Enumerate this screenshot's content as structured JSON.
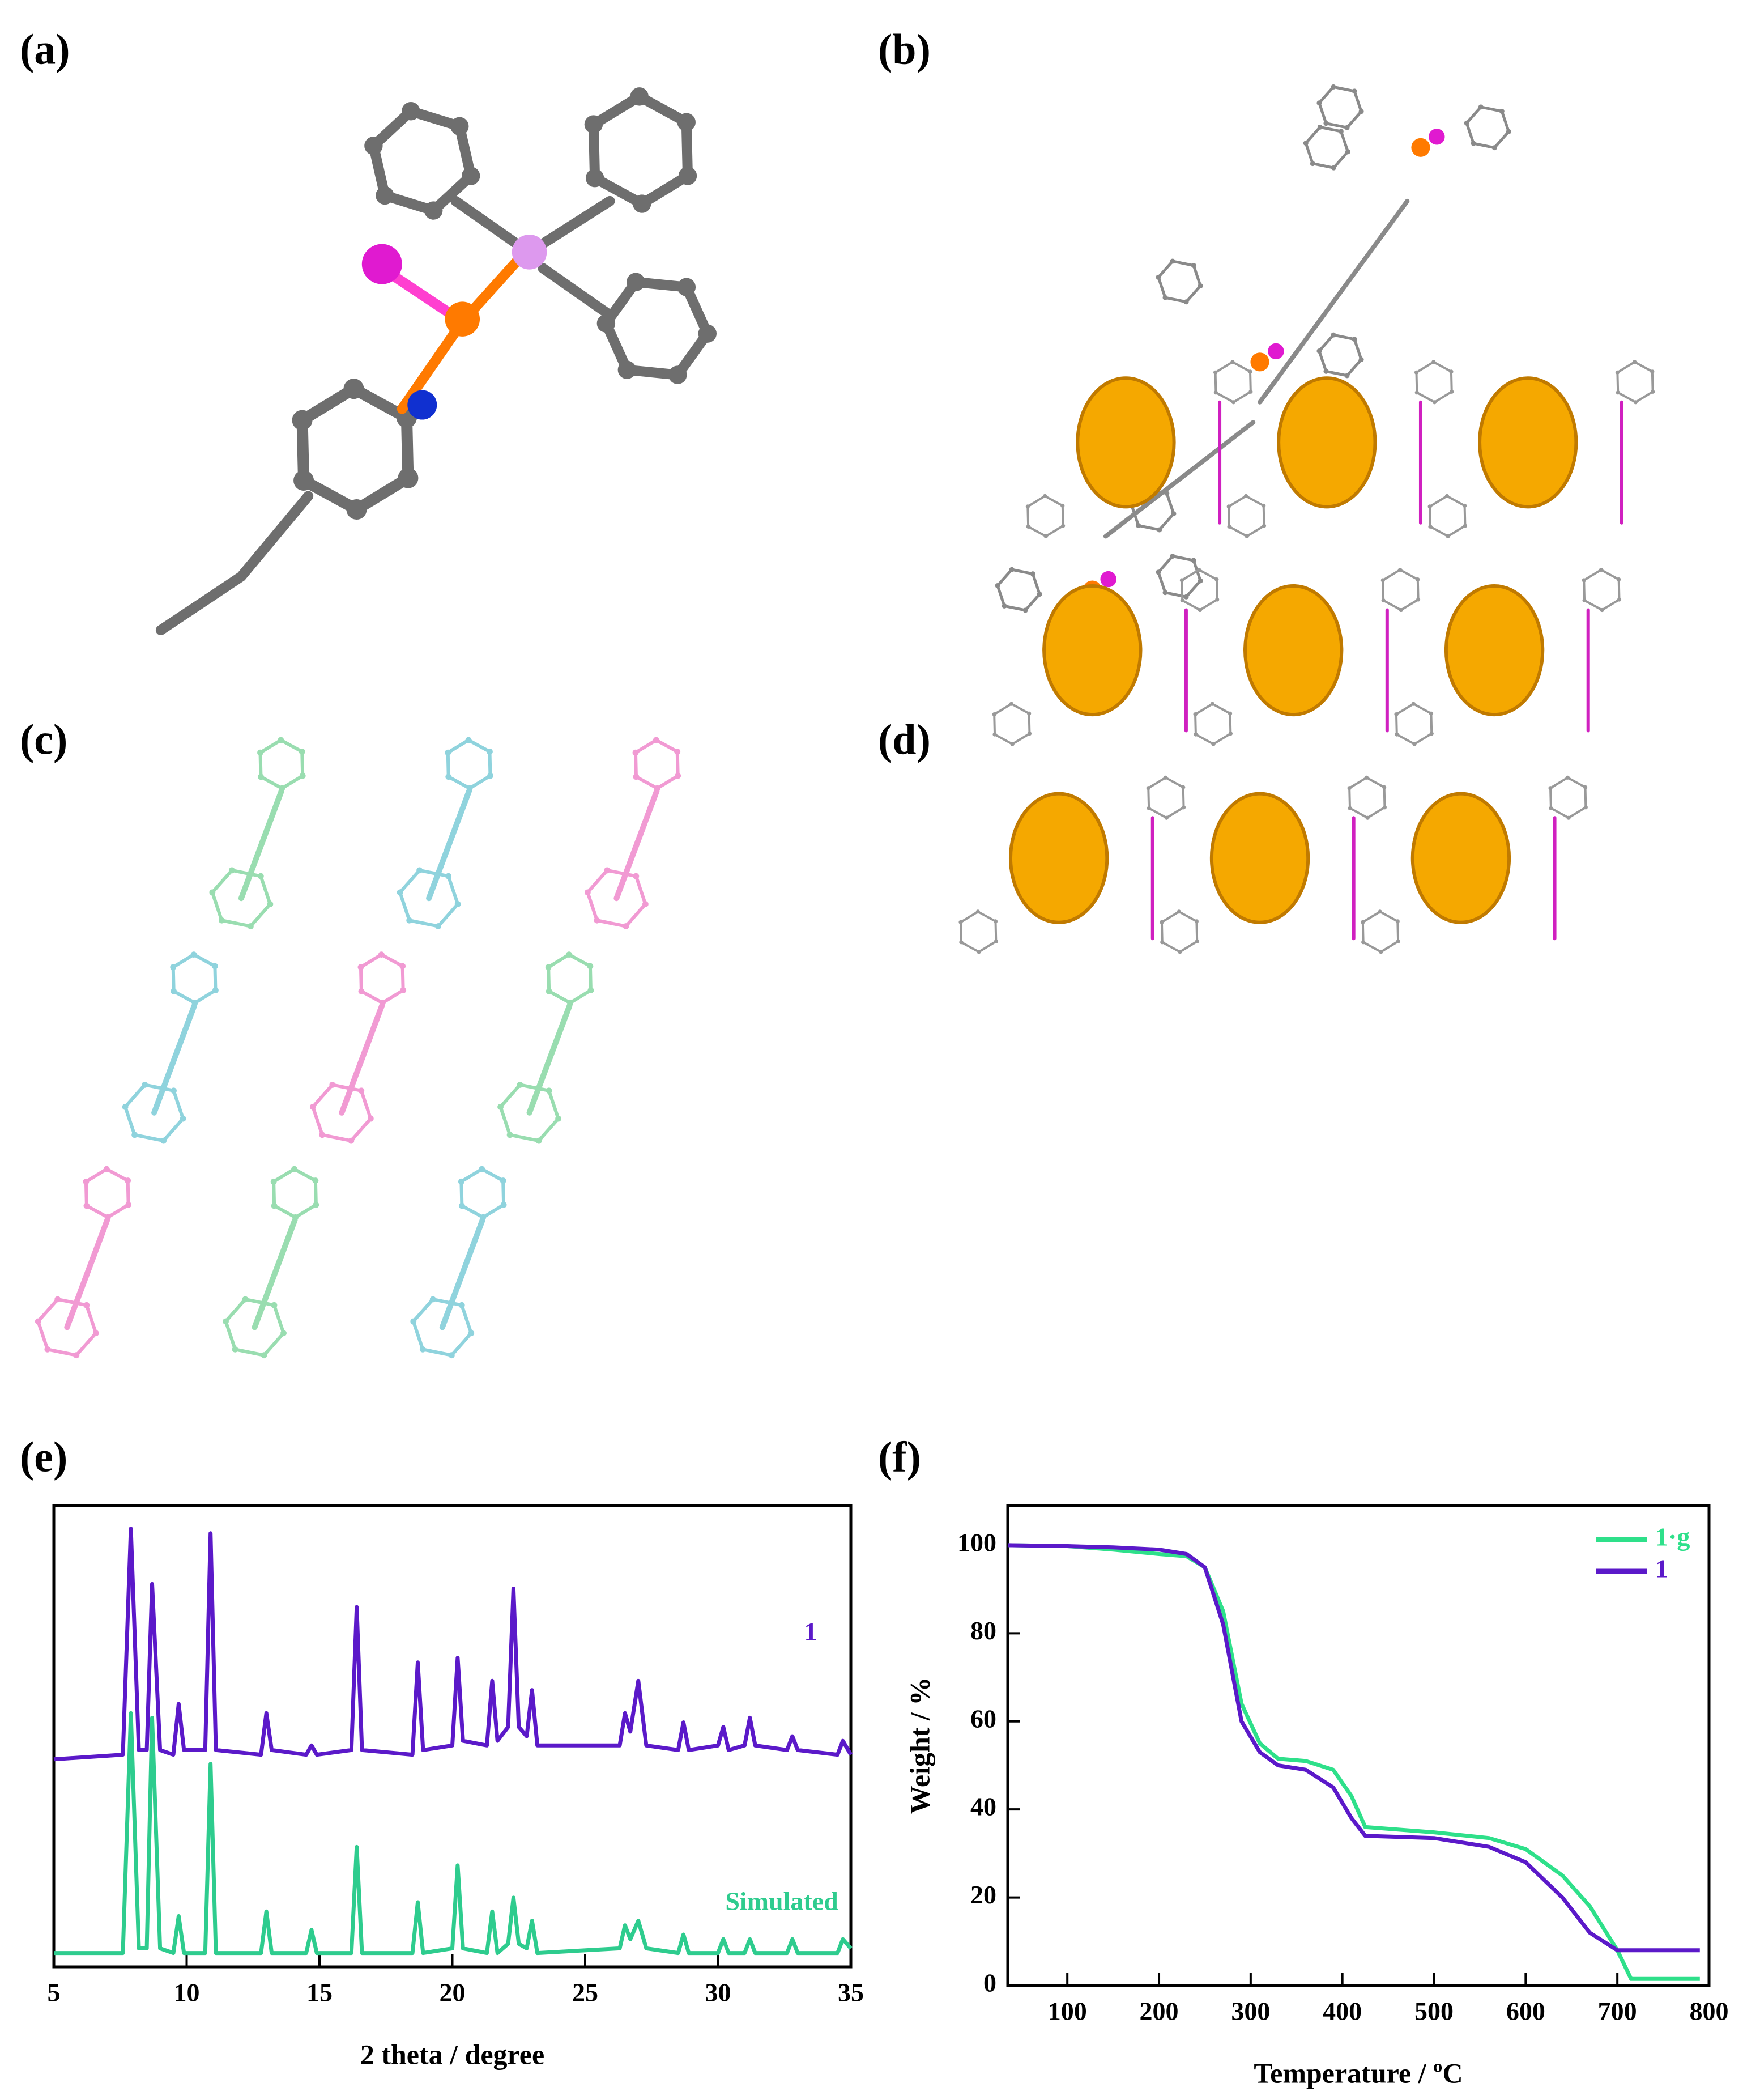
{
  "panel_labels": [
    "(a)",
    "(b)",
    "(c)",
    "(d)",
    "(e)",
    "(f)"
  ],
  "chart_data": [
    {
      "type": "line",
      "xlabel": "2 theta / degree",
      "x": [
        5,
        7.6,
        7.9,
        8.2,
        8.5,
        8.7,
        9.0,
        9.5,
        9.7,
        9.9,
        10.7,
        10.9,
        11.1,
        12.8,
        13.0,
        13.2,
        14.5,
        14.7,
        14.9,
        16.2,
        16.4,
        16.6,
        18.5,
        18.7,
        18.9,
        20.0,
        20.2,
        20.4,
        21.3,
        21.5,
        21.7,
        22.1,
        22.3,
        22.5,
        22.8,
        23.0,
        23.2,
        26.3,
        26.5,
        26.7,
        27.0,
        27.3,
        28.5,
        28.7,
        28.9,
        30.0,
        30.2,
        30.4,
        31.0,
        31.2,
        31.4,
        32.6,
        32.8,
        33.0,
        34.5,
        34.7,
        35
      ],
      "series": [
        {
          "name": "1",
          "color": "#5b19c9",
          "values": [
            45,
            46,
            95,
            47,
            47,
            83,
            47,
            46,
            57,
            47,
            47,
            94,
            47,
            46,
            55,
            47,
            46,
            48,
            46,
            47,
            78,
            47,
            46,
            66,
            47,
            48,
            67,
            49,
            48,
            62,
            49,
            52,
            82,
            52,
            50,
            60,
            48,
            48,
            55,
            51,
            62,
            48,
            47,
            53,
            47,
            48,
            52,
            47,
            48,
            54,
            48,
            47,
            50,
            47,
            46,
            49,
            46
          ]
        },
        {
          "name": "Simulated",
          "color": "#2ecc8e",
          "values": [
            3,
            3,
            55,
            4,
            4,
            54,
            4,
            3,
            11,
            3,
            3,
            44,
            3,
            3,
            12,
            3,
            3,
            8,
            3,
            3,
            26,
            3,
            3,
            14,
            3,
            4,
            22,
            4,
            3,
            12,
            3,
            5,
            15,
            5,
            4,
            10,
            3,
            4,
            9,
            6,
            10,
            4,
            3,
            7,
            3,
            3,
            6,
            3,
            3,
            6,
            3,
            3,
            6,
            3,
            3,
            6,
            4
          ]
        }
      ],
      "xlim": [
        5,
        35
      ],
      "xticks": [
        5,
        10,
        15,
        20,
        25,
        30,
        35
      ],
      "ylim": [
        0,
        100
      ],
      "legend": "inline"
    },
    {
      "type": "line",
      "xlabel": "Temperature / ºC",
      "ylabel": "Weight / %",
      "x": [
        35,
        100,
        150,
        200,
        230,
        250,
        270,
        290,
        310,
        330,
        360,
        390,
        410,
        425,
        500,
        560,
        600,
        640,
        670,
        700,
        715,
        790
      ],
      "series": [
        {
          "name": "1·g",
          "color": "#2ee08a",
          "values": [
            100,
            99.8,
            99,
            98,
            97.5,
            95,
            85,
            64,
            55,
            51.5,
            51,
            49,
            43,
            36,
            34.8,
            33.5,
            31,
            25,
            18,
            8,
            1.5,
            1.5
          ]
        },
        {
          "name": "1",
          "color": "#5b19c9",
          "values": [
            100,
            99.8,
            99.5,
            99,
            98,
            95,
            82,
            60,
            53,
            50,
            49,
            45,
            38,
            34,
            33.5,
            31.5,
            28,
            20,
            12,
            8,
            8,
            8
          ]
        }
      ],
      "xlim": [
        35,
        800
      ],
      "xticks": [
        100,
        200,
        300,
        400,
        500,
        600,
        700,
        800
      ],
      "ylim": [
        0,
        109
      ],
      "yticks": [
        0,
        20,
        40,
        60,
        80,
        100
      ],
      "legend": "upper right"
    }
  ]
}
